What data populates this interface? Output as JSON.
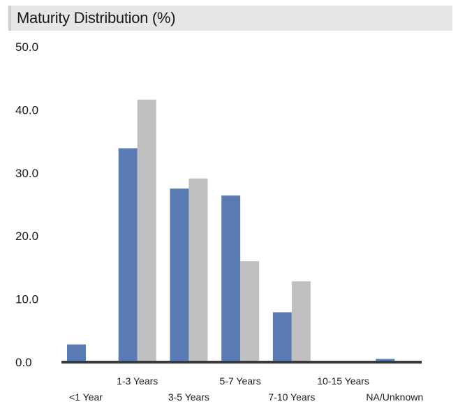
{
  "chart_data": {
    "type": "bar",
    "title": "Maturity Distribution (%)",
    "xlabel": "",
    "ylabel": "",
    "ylim": [
      0,
      50
    ],
    "yticks": [
      "0.0",
      "10.0",
      "20.0",
      "30.0",
      "40.0",
      "50.0"
    ],
    "grid": false,
    "legend": "none",
    "categories": [
      "<1 Year",
      "1-3 Years",
      "3-5 Years",
      "5-7 Years",
      "7-10 Years",
      "10-15 Years",
      "NA/Unknown"
    ],
    "series": [
      {
        "values": [
          2.7,
          33.8,
          27.4,
          26.3,
          7.8,
          -0.3,
          0.4
        ],
        "color": "#5b7bb5"
      },
      {
        "values": [
          -0.3,
          41.5,
          29.0,
          15.9,
          12.7,
          -0.3,
          -0.3
        ],
        "color": "#c0c0c0"
      }
    ]
  }
}
